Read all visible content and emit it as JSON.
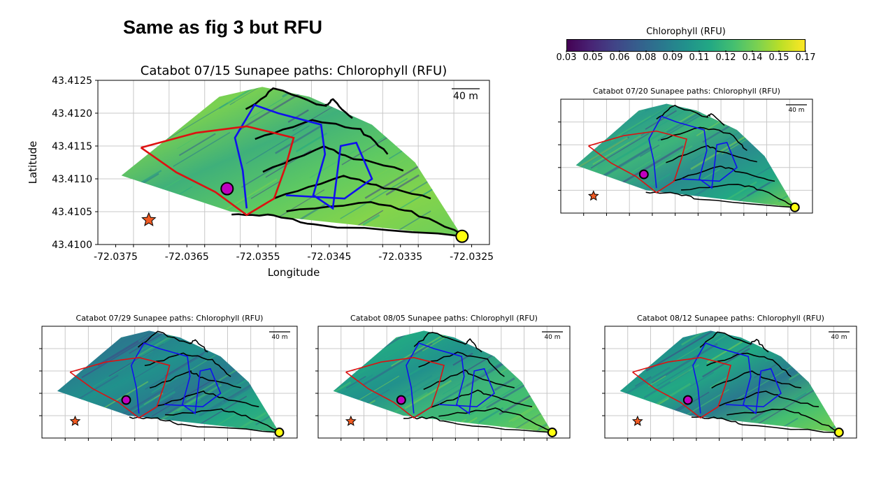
{
  "slide": {
    "title": "Same as fig 3 but RFU"
  },
  "colorbar": {
    "label": "Chlorophyll (RFU)",
    "tick_labels": [
      "0.03",
      "0.05",
      "0.06",
      "0.08",
      "0.09",
      "0.11",
      "0.12",
      "0.14",
      "0.15",
      "0.17"
    ],
    "palette": [
      "#440154",
      "#482475",
      "#414487",
      "#355f8d",
      "#2a788e",
      "#21918c",
      "#22a884",
      "#44bf70",
      "#7ad151",
      "#bddf26",
      "#fde725"
    ]
  },
  "path_colors": {
    "black": "#000000",
    "blue": "#1010ee",
    "red": "#dd1111",
    "start_star": "#f05a22",
    "magenta": "#c000c0",
    "end_circle": "#ffff10"
  },
  "chart_data": [
    {
      "type": "scatter",
      "title": "Catabot 07/15 Sunapee paths: Chlorophyll (RFU)",
      "xlabel": "Longitude",
      "ylabel": "Latitude",
      "xlim": [
        -72.038,
        -72.0325
      ],
      "ylim": [
        43.41,
        43.4125
      ],
      "xticks": [
        "-72.0375",
        "-72.0365",
        "-72.0355",
        "-72.0345",
        "-72.0335",
        "-72.0325"
      ],
      "yticks": [
        "43.4100",
        "43.4105",
        "43.4110",
        "43.4115",
        "43.4120",
        "43.4125"
      ],
      "scale_bar": "40 m",
      "grid": true
    },
    {
      "type": "scatter",
      "title": "Catabot 07/20 Sunapee paths: Chlorophyll (RFU)",
      "scale_bar": "40 m",
      "grid": true
    },
    {
      "type": "scatter",
      "title": "Catabot 07/29 Sunapee paths: Chlorophyll (RFU)",
      "scale_bar": "40 m",
      "grid": true
    },
    {
      "type": "scatter",
      "title": "Catabot 08/05 Sunapee paths: Chlorophyll (RFU)",
      "scale_bar": "40 m",
      "grid": true
    },
    {
      "type": "scatter",
      "title": "Catabot 08/12 Sunapee paths: Chlorophyll (RFU)",
      "scale_bar": "40 m",
      "grid": true
    }
  ]
}
